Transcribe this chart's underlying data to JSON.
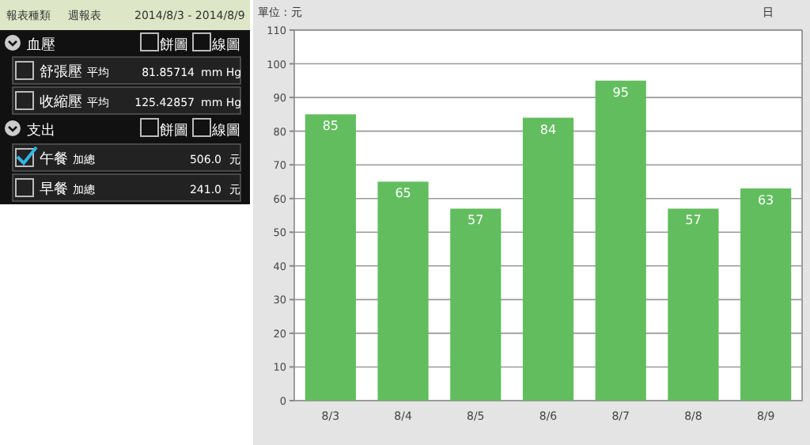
{
  "chart_data": [
    {
      "type": "other",
      "annotations": [
        "報表種類",
        "週報表",
        "2014/8/3 - 2014/8/9",
        "血壓",
        "餅圖",
        "線圖",
        "舒張壓",
        "平均",
        "81.85714",
        "mm Hg",
        "收縮壓",
        "平均",
        "125.42857",
        "mm Hg",
        "支出",
        "餅圖",
        "線圖",
        "午餐",
        "加總",
        "506.0",
        "元",
        "早餐",
        "加總",
        "241.0",
        "元"
      ]
    },
    {
      "type": "bar",
      "ylabel": "單位 : 元",
      "annotations": [
        "日"
      ],
      "categories": [
        "8/3",
        "8/4",
        "8/5",
        "8/6",
        "8/7",
        "8/8",
        "8/9"
      ],
      "values": [
        85,
        65,
        57,
        84,
        95,
        57,
        63
      ],
      "color": "#62bd5e",
      "data_labels": true,
      "ylim": [
        0,
        110
      ],
      "yticks": [
        0,
        10,
        20,
        30,
        40,
        50,
        60,
        70,
        80,
        90,
        100,
        110
      ],
      "grid": "y"
    }
  ]
}
